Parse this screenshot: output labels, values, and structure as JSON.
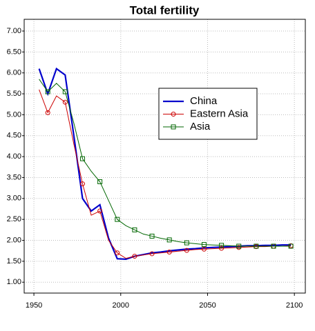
{
  "chart_data": {
    "type": "line",
    "title": "Total fertility",
    "x": [
      1953,
      1958,
      1963,
      1968,
      1973,
      1978,
      1983,
      1988,
      1993,
      1998,
      2003,
      2008,
      2013,
      2018,
      2023,
      2028,
      2033,
      2038,
      2043,
      2048,
      2053,
      2058,
      2063,
      2068,
      2073,
      2078,
      2083,
      2088,
      2093,
      2098
    ],
    "series": [
      {
        "name": "China",
        "color": "#0000cc",
        "marker": "none",
        "values": [
          6.1,
          5.5,
          6.1,
          5.95,
          4.5,
          3.0,
          2.7,
          2.85,
          2.05,
          1.56,
          1.55,
          1.62,
          1.66,
          1.7,
          1.72,
          1.75,
          1.77,
          1.79,
          1.8,
          1.82,
          1.83,
          1.84,
          1.85,
          1.86,
          1.87,
          1.87,
          1.88,
          1.88,
          1.89,
          1.89
        ]
      },
      {
        "name": "Eastern Asia",
        "color": "#cc0000",
        "marker": "circle",
        "values": [
          5.6,
          5.05,
          5.45,
          5.3,
          4.3,
          3.35,
          2.6,
          2.7,
          2.0,
          1.7,
          1.57,
          1.62,
          1.65,
          1.68,
          1.7,
          1.72,
          1.74,
          1.76,
          1.78,
          1.79,
          1.8,
          1.81,
          1.82,
          1.83,
          1.84,
          1.85,
          1.85,
          1.86,
          1.86,
          1.87
        ]
      },
      {
        "name": "Asia",
        "color": "#006600",
        "marker": "square",
        "values": [
          5.85,
          5.55,
          5.75,
          5.55,
          4.8,
          3.95,
          3.65,
          3.4,
          2.95,
          2.5,
          2.35,
          2.25,
          2.15,
          2.1,
          2.05,
          2.01,
          1.97,
          1.94,
          1.92,
          1.9,
          1.89,
          1.88,
          1.87,
          1.86,
          1.86,
          1.86,
          1.86,
          1.86,
          1.86,
          1.86
        ]
      }
    ],
    "xlim": [
      1944.4,
      2106.3
    ],
    "xticks": [
      1950,
      2000,
      2050,
      2100
    ],
    "ylim": [
      0.74,
      7.28
    ],
    "yticks": [
      {
        "value": 1,
        "label": "1.00"
      },
      {
        "value": 1.5,
        "label": "1.50"
      },
      {
        "value": 2,
        "label": "2.00"
      },
      {
        "value": 2.5,
        "label": "2.50"
      },
      {
        "value": 3,
        "label": "3.00"
      },
      {
        "value": 3.5,
        "label": "3.50"
      },
      {
        "value": 4,
        "label": "4.00"
      },
      {
        "value": 4.5,
        "label": "4.50"
      },
      {
        "value": 5,
        "label": "5.00"
      },
      {
        "value": 5.5,
        "label": "5.50"
      },
      {
        "value": 6,
        "label": "6.00"
      },
      {
        "value": 6.5,
        "label": "6.50"
      },
      {
        "value": 7,
        "label": "7.00"
      }
    ],
    "grid": true,
    "legend": "upper right"
  }
}
